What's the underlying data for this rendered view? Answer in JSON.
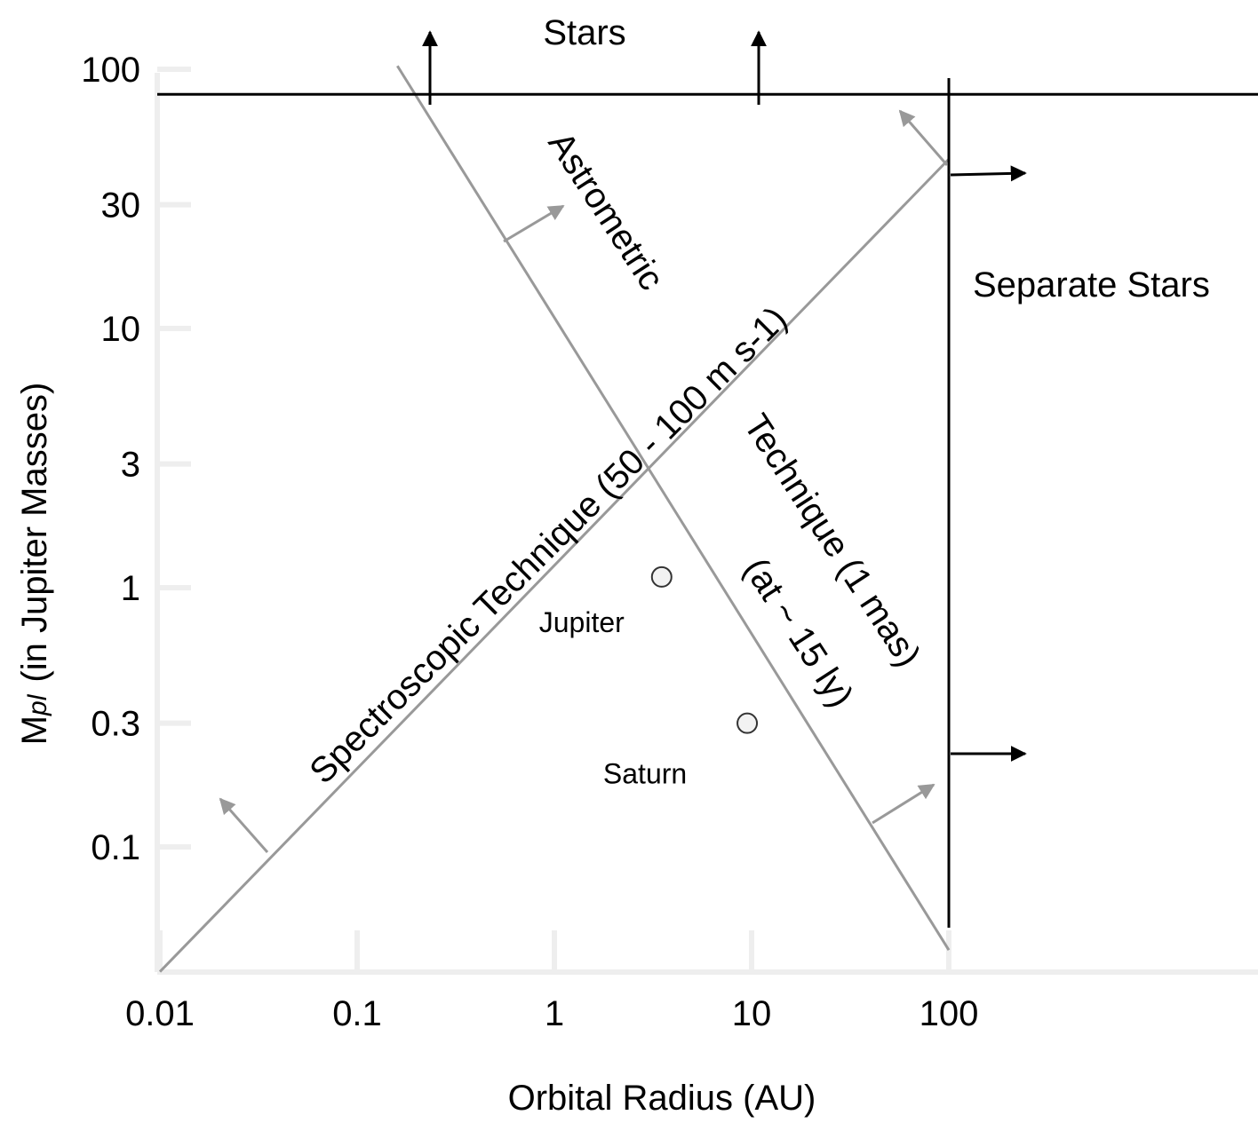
{
  "chart_data": {
    "type": "line",
    "xscale": "log",
    "yscale": "log",
    "xlim": [
      0.01,
      1000
    ],
    "ylim": [
      0.035,
      100
    ],
    "xlabel": "Orbital Radius (AU)",
    "ylabel_main": "M",
    "ylabel_sub": "pl",
    "ylabel_rest": "(in Jupiter Masses)",
    "x_ticks": [
      {
        "value": 0.01,
        "label": "0.01"
      },
      {
        "value": 0.1,
        "label": "0.1"
      },
      {
        "value": 1,
        "label": "1"
      },
      {
        "value": 10,
        "label": "10"
      },
      {
        "value": 100,
        "label": "100"
      }
    ],
    "y_ticks": [
      {
        "value": 0.1,
        "label": "0.1"
      },
      {
        "value": 0.3,
        "label": "0.3"
      },
      {
        "value": 1,
        "label": "1"
      },
      {
        "value": 3,
        "label": "3"
      },
      {
        "value": 10,
        "label": "10"
      },
      {
        "value": 30,
        "label": "30"
      },
      {
        "value": 100,
        "label": "100"
      }
    ],
    "series": [
      {
        "key": "spectroscopic",
        "points": [
          [
            0.01,
            0.033
          ],
          [
            100,
            45
          ]
        ]
      },
      {
        "key": "astrometric",
        "points": [
          [
            0.16,
            103
          ],
          [
            100,
            0.04
          ]
        ]
      }
    ],
    "limits": [
      {
        "key": "stars",
        "axis": "y",
        "value": 80,
        "label": "Stars"
      },
      {
        "key": "separate-stars",
        "axis": "x",
        "value": 100,
        "label": "Separate Stars"
      }
    ],
    "line_labels": {
      "spectroscopic": "Spectroscopic Technique  (50 - 100 m s-1)",
      "astrometric_1": "Astrometric",
      "astrometric_2": "Technique  (1 mas)",
      "astrometric_3": "(at ~ 15 ly)"
    },
    "points": [
      {
        "name": "Jupiter",
        "x": 3.5,
        "y": 1.1
      },
      {
        "name": "Saturn",
        "x": 9.5,
        "y": 0.3
      }
    ],
    "grid": false,
    "colors": {
      "lines": "#999999",
      "limits": "#000000",
      "ticks": "#eeeeee"
    }
  }
}
